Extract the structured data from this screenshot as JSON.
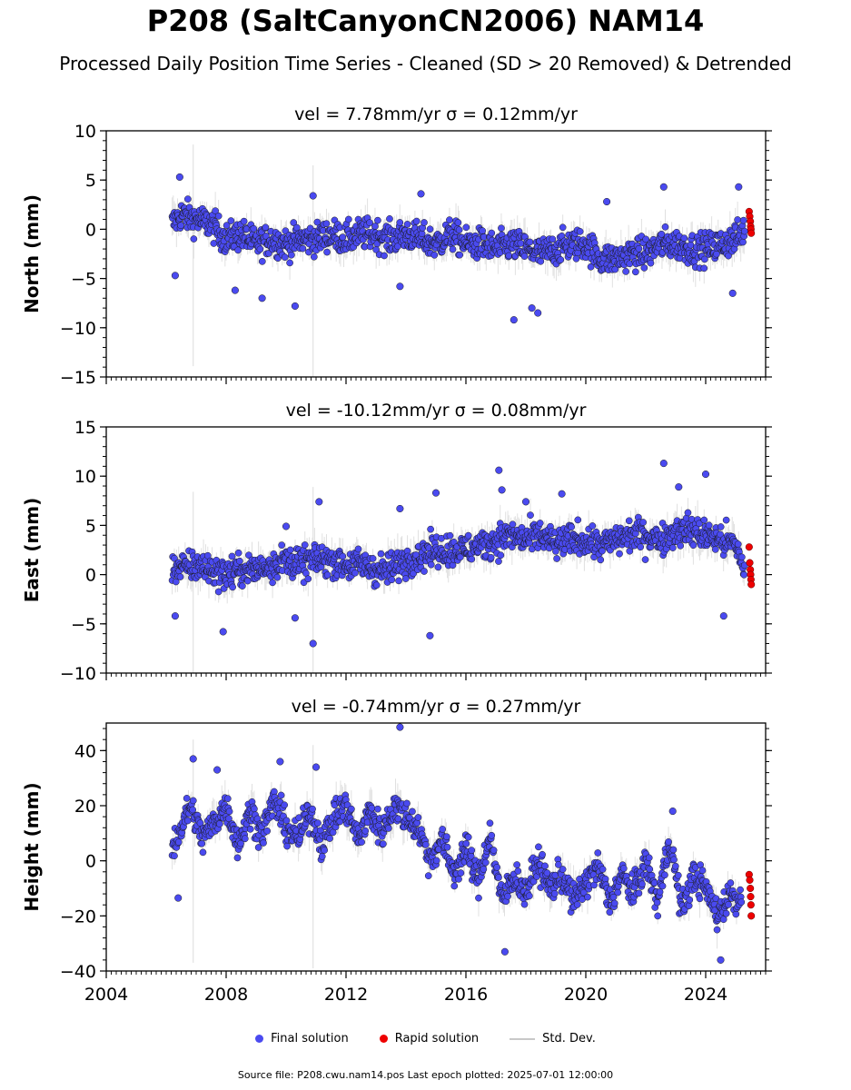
{
  "title": "P208 (SaltCanyonCN2006) NAM14",
  "subtitle": "Processed Daily Position Time Series - Cleaned (SD > 20 Removed) & Detrended",
  "legend": {
    "final": "Final solution",
    "rapid": "Rapid solution",
    "std": "Std. Dev."
  },
  "footer": "Source file: P208.cwu.nam14.pos  Last epoch plotted: 2025-07-01 12:00:00",
  "colors": {
    "final": "#4a4af0",
    "rapid": "#ee0000",
    "std": "#c8c8c8",
    "edge": "#1a1a1a"
  },
  "chart_data": [
    {
      "type": "scatter",
      "title": "vel = 7.78mm/yr   σ = 0.12mm/yr",
      "ylabel": "North (mm)",
      "xlim": [
        2004,
        2026
      ],
      "ylim": [
        -15,
        10
      ],
      "yticks": [
        10,
        5,
        0,
        -5,
        -10,
        -15
      ],
      "ytick_labels": [
        "10",
        "5",
        "0",
        "−5",
        "−10",
        "−15"
      ],
      "xticks": [
        2004,
        2008,
        2012,
        2016,
        2020,
        2024
      ],
      "xtick_labels": [],
      "series": [
        {
          "name": "Final solution",
          "style": "final",
          "x": [
            2006.2,
            2006.5,
            2007.0,
            2007.5,
            2008.0,
            2008.5,
            2009.0,
            2009.5,
            2010.0,
            2010.5,
            2011.0,
            2011.5,
            2012.0,
            2012.5,
            2013.0,
            2013.5,
            2014.0,
            2014.5,
            2015.0,
            2015.5,
            2016.0,
            2016.5,
            2017.0,
            2017.5,
            2018.0,
            2018.5,
            2019.0,
            2019.5,
            2020.0,
            2020.5,
            2021.0,
            2021.5,
            2022.0,
            2022.5,
            2023.0,
            2023.5,
            2024.0,
            2024.5,
            2025.0,
            2025.3
          ],
          "y": [
            0.5,
            1.5,
            1.0,
            0.5,
            -1.0,
            -0.5,
            -1.5,
            -1.0,
            -1.5,
            -1.0,
            -1.0,
            -0.5,
            -1.0,
            -0.5,
            -0.5,
            -1.0,
            -0.5,
            -1.0,
            -1.5,
            -0.5,
            -1.5,
            -1.5,
            -2.0,
            -1.5,
            -2.0,
            -2.5,
            -2.0,
            -1.5,
            -1.5,
            -3.0,
            -3.0,
            -2.5,
            -2.5,
            -1.5,
            -1.5,
            -2.0,
            -2.0,
            -1.5,
            -1.0,
            0.0
          ]
        },
        {
          "name": "Rapid solution",
          "style": "rapid",
          "x": [
            2025.45,
            2025.47,
            2025.49,
            2025.5,
            2025.51,
            2025.52
          ],
          "y": [
            1.8,
            1.3,
            0.8,
            0.3,
            0.0,
            -0.4
          ]
        }
      ],
      "outliers": {
        "x": [
          2006.3,
          2006.45,
          2008.3,
          2009.2,
          2010.3,
          2010.9,
          2013.8,
          2014.5,
          2017.6,
          2018.2,
          2018.4,
          2020.7,
          2022.6,
          2024.9,
          2025.1
        ],
        "y": [
          -4.7,
          5.3,
          -6.2,
          -7.0,
          -7.8,
          3.4,
          -5.8,
          3.6,
          -9.2,
          -8.0,
          -8.5,
          2.8,
          4.3,
          -6.5,
          4.3
        ]
      }
    },
    {
      "type": "scatter",
      "title": "vel = -10.12mm/yr   σ = 0.08mm/yr",
      "ylabel": "East (mm)",
      "xlim": [
        2004,
        2026
      ],
      "ylim": [
        -10,
        15
      ],
      "yticks": [
        15,
        10,
        5,
        0,
        -5,
        -10
      ],
      "ytick_labels": [
        "15",
        "10",
        "5",
        "0",
        "−5",
        "−10"
      ],
      "xticks": [
        2004,
        2008,
        2012,
        2016,
        2020,
        2024
      ],
      "xtick_labels": [],
      "series": [
        {
          "name": "Final solution",
          "style": "final",
          "x": [
            2006.2,
            2006.5,
            2007.0,
            2007.5,
            2008.0,
            2008.5,
            2009.0,
            2009.5,
            2010.0,
            2010.5,
            2011.0,
            2011.5,
            2012.0,
            2012.5,
            2013.0,
            2013.5,
            2014.0,
            2014.5,
            2015.0,
            2015.5,
            2016.0,
            2016.5,
            2017.0,
            2017.5,
            2018.0,
            2018.5,
            2019.0,
            2019.5,
            2020.0,
            2020.5,
            2021.0,
            2021.5,
            2022.0,
            2022.5,
            2023.0,
            2023.5,
            2024.0,
            2024.5,
            2025.0,
            2025.3
          ],
          "y": [
            1.0,
            0.5,
            1.0,
            0.5,
            0.0,
            0.5,
            0.5,
            1.0,
            1.5,
            1.0,
            1.5,
            1.5,
            1.0,
            1.0,
            0.5,
            0.5,
            1.5,
            2.0,
            2.5,
            2.5,
            2.5,
            3.0,
            3.5,
            4.0,
            3.5,
            4.0,
            3.0,
            3.5,
            3.5,
            3.0,
            3.5,
            4.0,
            4.0,
            3.5,
            4.5,
            4.5,
            4.0,
            3.5,
            3.0,
            0.5
          ]
        },
        {
          "name": "Rapid solution",
          "style": "rapid",
          "x": [
            2025.45,
            2025.47,
            2025.49,
            2025.5,
            2025.51,
            2025.52
          ],
          "y": [
            2.8,
            1.2,
            0.5,
            0.0,
            -0.5,
            -1.0
          ]
        }
      ],
      "outliers": {
        "x": [
          2006.3,
          2007.9,
          2010.0,
          2010.3,
          2010.9,
          2011.1,
          2013.8,
          2014.8,
          2015.0,
          2017.1,
          2017.2,
          2018.0,
          2019.2,
          2022.6,
          2023.1,
          2024.0,
          2024.6
        ],
        "y": [
          -4.2,
          -5.8,
          4.9,
          -4.4,
          -7.0,
          7.4,
          6.7,
          -6.2,
          8.3,
          10.6,
          8.6,
          7.4,
          8.2,
          11.3,
          8.9,
          10.2,
          -4.2
        ]
      }
    },
    {
      "type": "scatter",
      "title": "vel = -0.74mm/yr   σ = 0.27mm/yr",
      "ylabel": "Height (mm)",
      "xlim": [
        2004,
        2026
      ],
      "ylim": [
        -40,
        50
      ],
      "yticks": [
        40,
        20,
        0,
        -20,
        -40
      ],
      "ytick_labels": [
        "40",
        "20",
        "0",
        "−20",
        "−40"
      ],
      "xticks": [
        2004,
        2008,
        2012,
        2016,
        2020,
        2024
      ],
      "xtick_labels": [
        "2004",
        "2008",
        "2012",
        "2016",
        "2020",
        "2024"
      ],
      "series": [
        {
          "name": "Final solution",
          "style": "final",
          "x": [
            2006.2,
            2006.5,
            2006.8,
            2007.2,
            2007.6,
            2008.0,
            2008.4,
            2008.8,
            2009.2,
            2009.6,
            2010.0,
            2010.4,
            2010.8,
            2011.2,
            2011.6,
            2012.0,
            2012.4,
            2012.8,
            2013.2,
            2013.6,
            2014.0,
            2014.4,
            2014.8,
            2015.2,
            2015.6,
            2016.0,
            2016.4,
            2016.8,
            2017.2,
            2017.6,
            2018.0,
            2018.4,
            2018.8,
            2019.2,
            2019.6,
            2020.0,
            2020.4,
            2020.8,
            2021.2,
            2021.6,
            2022.0,
            2022.4,
            2022.8,
            2023.2,
            2023.6,
            2024.0,
            2024.4,
            2024.8,
            2025.2
          ],
          "y": [
            5,
            12,
            20,
            8,
            14,
            20,
            6,
            18,
            10,
            22,
            12,
            8,
            18,
            6,
            16,
            20,
            8,
            18,
            10,
            20,
            16,
            12,
            0,
            8,
            -5,
            5,
            -8,
            10,
            -15,
            -5,
            -12,
            0,
            -10,
            -5,
            -15,
            -8,
            -2,
            -15,
            -5,
            -12,
            0,
            -15,
            8,
            -18,
            -5,
            -10,
            -20,
            -12,
            -15
          ]
        },
        {
          "name": "Rapid solution",
          "style": "rapid",
          "x": [
            2025.45,
            2025.47,
            2025.49,
            2025.5,
            2025.51,
            2025.52
          ],
          "y": [
            -5,
            -7,
            -10,
            -13,
            -16,
            -20
          ]
        }
      ],
      "outliers": {
        "x": [
          2006.4,
          2006.9,
          2007.7,
          2009.8,
          2011.0,
          2013.8,
          2017.3,
          2022.9,
          2024.5
        ],
        "y": [
          -13.5,
          37.0,
          33.0,
          36.0,
          34.0,
          48.5,
          -33.0,
          18.0,
          -36.0
        ]
      }
    }
  ]
}
